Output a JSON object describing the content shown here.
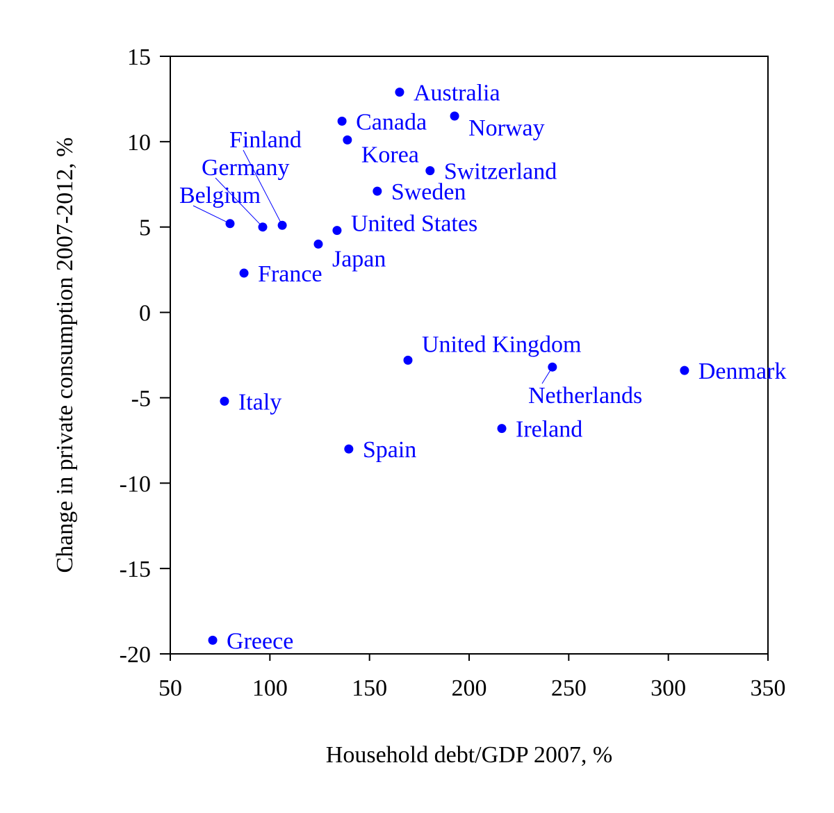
{
  "chart_data": {
    "type": "scatter",
    "title": "",
    "xlabel": "Household debt/GDP 2007, %",
    "ylabel": "Change in private consumption 2007-2012, %",
    "xlim": [
      50,
      350
    ],
    "ylim": [
      -20,
      15
    ],
    "xticks": [
      50,
      100,
      150,
      200,
      250,
      300,
      350
    ],
    "yticks": [
      -20,
      -15,
      -10,
      -5,
      0,
      5,
      10,
      15
    ],
    "grid": false,
    "color": "#0000ff",
    "points": [
      {
        "label": "Australia",
        "x": 165.1,
        "y": 12.9
      },
      {
        "label": "Norway",
        "x": 192.7,
        "y": 11.5
      },
      {
        "label": "Canada",
        "x": 136.2,
        "y": 11.2
      },
      {
        "label": "Korea",
        "x": 138.9,
        "y": 10.1
      },
      {
        "label": "Switzerland",
        "x": 180.4,
        "y": 8.3
      },
      {
        "label": "Sweden",
        "x": 153.9,
        "y": 7.1
      },
      {
        "label": "Belgium",
        "x": 80.0,
        "y": 5.2
      },
      {
        "label": "Germany",
        "x": 96.4,
        "y": 5.0
      },
      {
        "label": "Finland",
        "x": 106.2,
        "y": 5.1
      },
      {
        "label": "United States",
        "x": 133.7,
        "y": 4.8
      },
      {
        "label": "Japan",
        "x": 124.3,
        "y": 4.0
      },
      {
        "label": "France",
        "x": 87.0,
        "y": 2.3
      },
      {
        "label": "United Kingdom",
        "x": 169.3,
        "y": -2.8
      },
      {
        "label": "Netherlands",
        "x": 241.8,
        "y": -3.2
      },
      {
        "label": "Denmark",
        "x": 308.1,
        "y": -3.4
      },
      {
        "label": "Italy",
        "x": 77.2,
        "y": -5.2
      },
      {
        "label": "Ireland",
        "x": 216.4,
        "y": -6.8
      },
      {
        "label": "Spain",
        "x": 139.6,
        "y": -8.0
      },
      {
        "label": "Greece",
        "x": 71.3,
        "y": -19.2
      }
    ]
  }
}
